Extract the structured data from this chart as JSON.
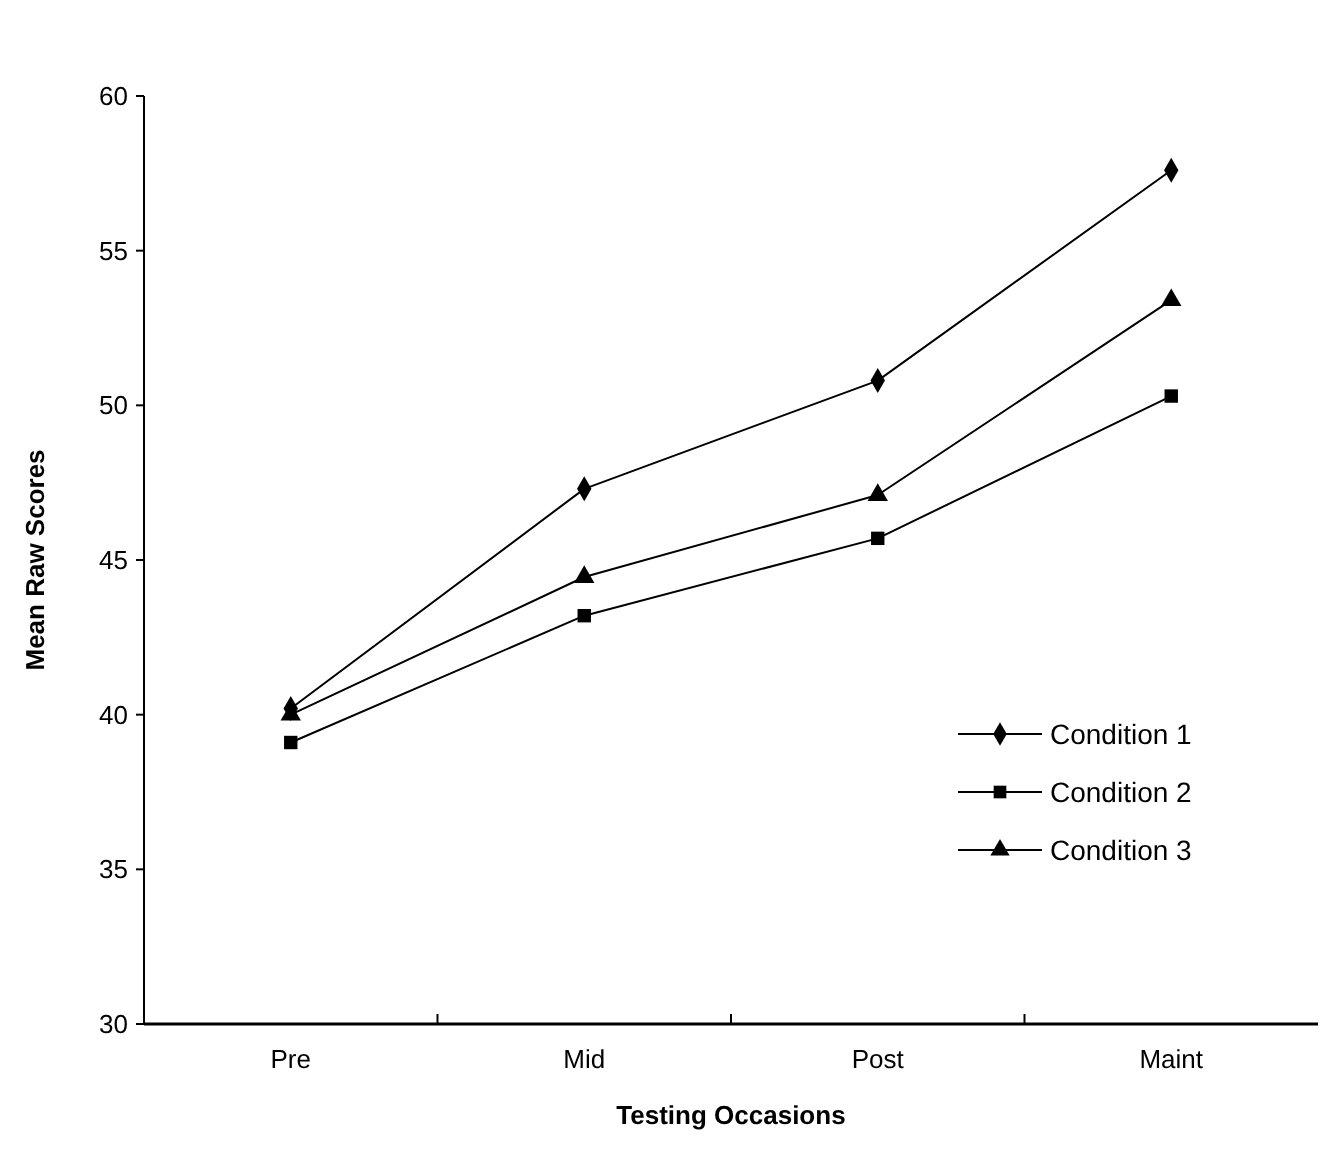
{
  "chart_data": {
    "type": "line",
    "xlabel": "Testing Occasions",
    "ylabel": "Mean Raw Scores",
    "categories": [
      "Pre",
      "Mid",
      "Post",
      "Maint"
    ],
    "series": [
      {
        "name": "Condition 1",
        "color": "#000000",
        "marker": "diamond",
        "values": [
          40.2,
          47.3,
          50.8,
          57.6
        ]
      },
      {
        "name": "Condition 2",
        "color": "#000000",
        "marker": "square",
        "values": [
          39.1,
          43.2,
          45.7,
          50.3
        ]
      },
      {
        "name": "Condition 3",
        "color": "#000000",
        "marker": "triangle",
        "values": [
          40.0,
          44.45,
          47.1,
          53.4
        ]
      }
    ],
    "ylim": [
      30,
      60
    ],
    "yticks": [
      30,
      35,
      40,
      45,
      50,
      55,
      60
    ],
    "grid": false,
    "legend": "bottom right",
    "line_style": "solid"
  }
}
